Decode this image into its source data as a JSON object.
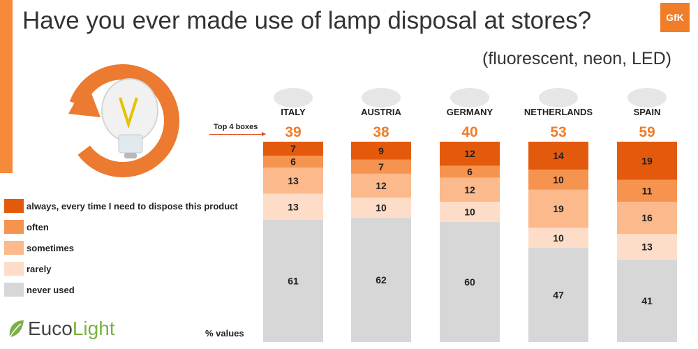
{
  "header": {
    "title": "Have you ever made use of lamp disposal at stores?",
    "subtitle": "(fluorescent, neon, LED)",
    "brand": "GfK"
  },
  "footer": {
    "logo_text_a": "Euco",
    "logo_text_b": "Light",
    "units_note": "% values",
    "top4_label": "Top 4 boxes"
  },
  "colors": {
    "always": "#e35a0c",
    "often": "#f6944f",
    "sometimes": "#fbb98c",
    "rarely": "#fdddc8",
    "never": "#d7d7d7",
    "accent": "#f07d28"
  },
  "chart_data": {
    "type": "bar",
    "stacked": true,
    "categories": [
      "ITALY",
      "AUSTRIA",
      "GERMANY",
      "NETHERLANDS",
      "SPAIN"
    ],
    "top4": [
      39,
      38,
      40,
      53,
      59
    ],
    "series": [
      {
        "name": "always, every time I need to dispose this product",
        "key": "always",
        "values": [
          7,
          9,
          12,
          14,
          19
        ]
      },
      {
        "name": "often",
        "key": "often",
        "values": [
          6,
          7,
          6,
          10,
          11
        ]
      },
      {
        "name": "sometimes",
        "key": "sometimes",
        "values": [
          13,
          12,
          12,
          19,
          16
        ]
      },
      {
        "name": "rarely",
        "key": "rarely",
        "values": [
          13,
          10,
          10,
          10,
          13
        ]
      },
      {
        "name": "never used",
        "key": "never",
        "values": [
          61,
          62,
          60,
          47,
          41
        ]
      }
    ],
    "ylim": [
      0,
      100
    ],
    "legend_position": "left"
  }
}
